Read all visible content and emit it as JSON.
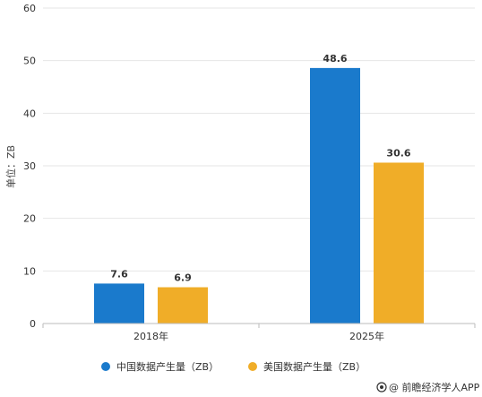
{
  "chart_data": {
    "type": "bar",
    "title": "",
    "ylabel": "单位：ZB",
    "xlabel": "",
    "categories": [
      "2018年",
      "2025年"
    ],
    "series": [
      {
        "name": "中国数据产生量（ZB）",
        "values": [
          7.6,
          48.6
        ],
        "color": "#1a7acc"
      },
      {
        "name": "美国数据产生量（ZB）",
        "values": [
          6.9,
          30.6
        ],
        "color": "#f0ad28"
      }
    ],
    "ylim": [
      0,
      60
    ],
    "yticks": [
      "0",
      "10",
      "20",
      "30",
      "40",
      "50",
      "60"
    ],
    "data_labels": [
      [
        "7.6",
        "48.6"
      ],
      [
        "6.9",
        "30.6"
      ]
    ],
    "grid": true,
    "legend_position": "bottom"
  },
  "credit": "@ 前瞻经济学人APP",
  "credit_icon": "camera-logo-icon"
}
